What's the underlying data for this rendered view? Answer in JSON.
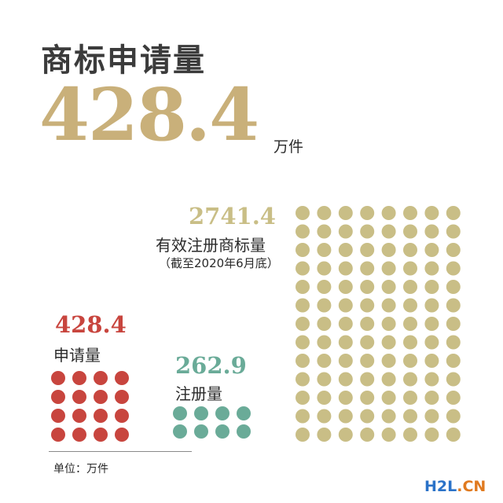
{
  "title": "商标申请量",
  "headline": {
    "value": "428.4",
    "unit": "万件"
  },
  "chart_data": {
    "type": "dot-matrix",
    "unit_note": "单位：万件",
    "series": [
      {
        "key": "applications",
        "value": "428.4",
        "label": "申请量",
        "color": "#c8453e"
      },
      {
        "key": "granted",
        "value": "262.9",
        "label": "注册量",
        "color": "#6aab98"
      },
      {
        "key": "registered",
        "value": "2741.4",
        "label": "有效注册商标量",
        "note": "（截至2020年6月底）",
        "color": "#c9be86"
      }
    ]
  },
  "watermark": {
    "prefix": "H2L",
    "suffix": ".CN"
  }
}
